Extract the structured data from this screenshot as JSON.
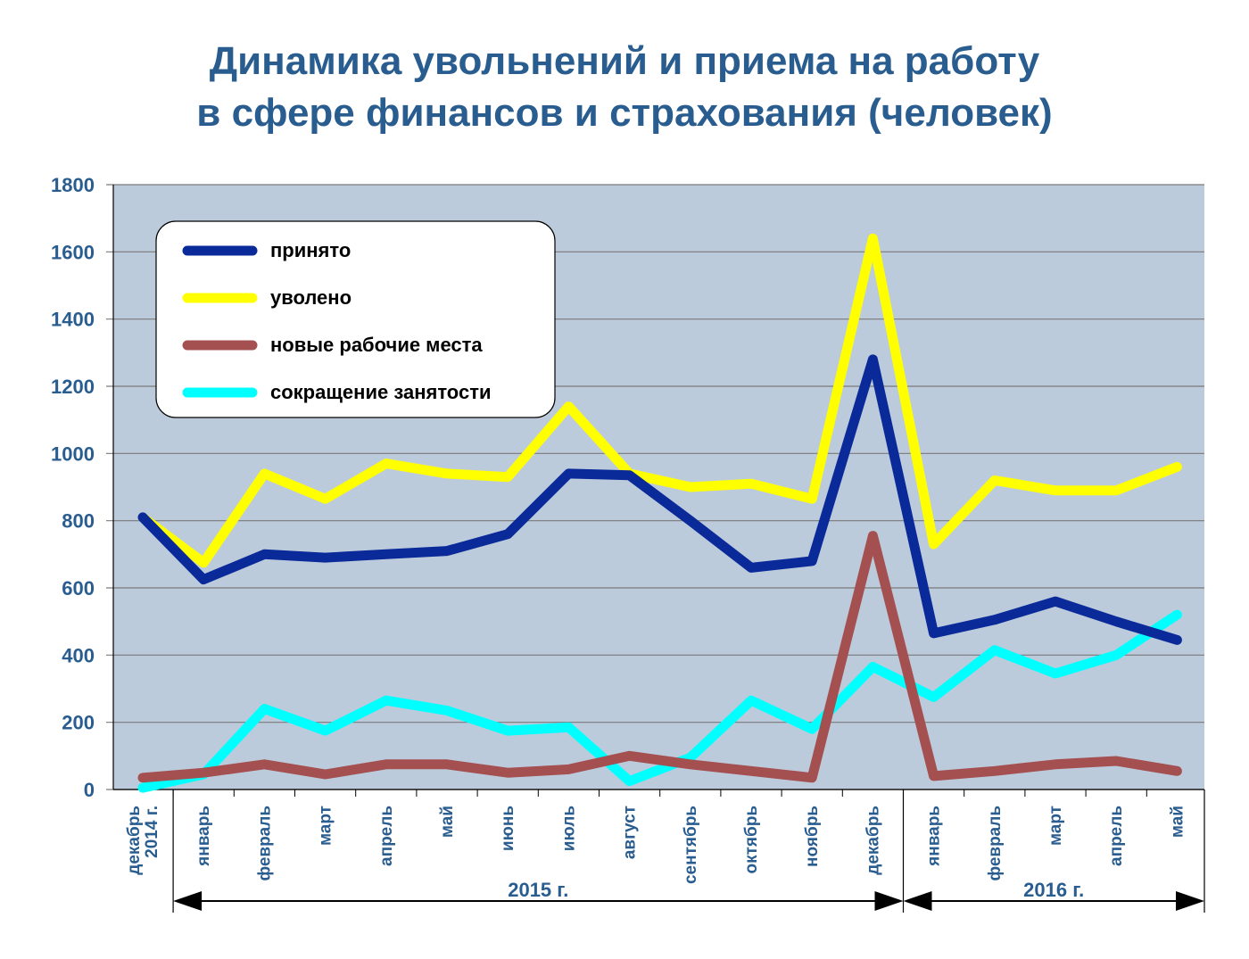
{
  "title_lines": [
    "Динамика увольнений и приема на работу",
    "в сфере финансов и страхования (человек)"
  ],
  "chart_data": {
    "type": "line",
    "categories": [
      [
        "декабрь",
        "2014 г."
      ],
      [
        "январь"
      ],
      [
        "февраль"
      ],
      [
        "март"
      ],
      [
        "апрель"
      ],
      [
        "май"
      ],
      [
        "июнь"
      ],
      [
        "июль"
      ],
      [
        "август"
      ],
      [
        "сентябрь"
      ],
      [
        "октябрь"
      ],
      [
        "ноябрь"
      ],
      [
        "декабрь"
      ],
      [
        "январь"
      ],
      [
        "февраль"
      ],
      [
        "март"
      ],
      [
        "апрель"
      ],
      [
        "май"
      ]
    ],
    "ylim": [
      0,
      1800
    ],
    "yticks": [
      "0",
      "200",
      "400",
      "600",
      "800",
      "1000",
      "1200",
      "1400",
      "1600",
      "1800"
    ],
    "grid": true,
    "plot_background": "#bccbdb",
    "legend_position": "top-left",
    "periods": [
      {
        "label": "2015 г.",
        "from_index": 1,
        "to_index": 12
      },
      {
        "label": "2016 г.",
        "from_index": 13,
        "to_index": 17
      }
    ],
    "series": [
      {
        "name": "принято",
        "color": "#0a2a9a",
        "values": [
          810,
          625,
          700,
          690,
          700,
          710,
          760,
          940,
          935,
          800,
          660,
          680,
          1280,
          465,
          505,
          560,
          500,
          445
        ]
      },
      {
        "name": "уволено",
        "color": "#ffff00",
        "values": [
          810,
          675,
          940,
          865,
          970,
          940,
          930,
          1140,
          940,
          900,
          910,
          865,
          1640,
          730,
          920,
          890,
          890,
          960
        ]
      },
      {
        "name": "новые рабочие места",
        "color": "#a45050",
        "values": [
          35,
          50,
          75,
          45,
          75,
          75,
          50,
          60,
          100,
          75,
          55,
          35,
          755,
          40,
          55,
          75,
          85,
          55
        ]
      },
      {
        "name": "сокращение занятости",
        "color": "#00ffff",
        "values": [
          5,
          45,
          240,
          175,
          265,
          235,
          175,
          185,
          25,
          95,
          265,
          180,
          365,
          275,
          415,
          345,
          400,
          520
        ]
      }
    ]
  }
}
